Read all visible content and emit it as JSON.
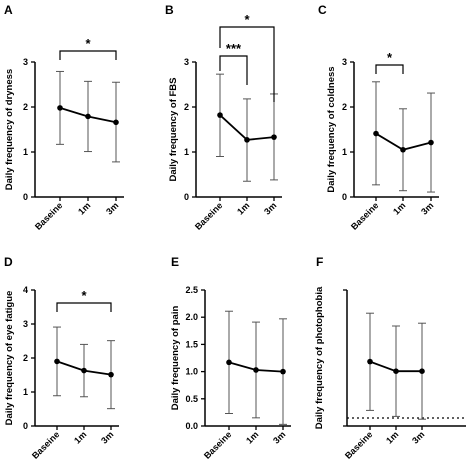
{
  "chart_data": [
    {
      "type": "line",
      "panel": "A",
      "ylabel": "Daily frequency of dryness",
      "categories": [
        "Baseine",
        "1m",
        "3m"
      ],
      "yticks": [
        "0",
        "1",
        "2",
        "3"
      ],
      "ylim": [
        0,
        3
      ],
      "series": [
        {
          "values": [
            1.98,
            1.79,
            1.66
          ],
          "err_low": [
            1.17,
            1.01,
            0.78
          ],
          "err_high": [
            2.79,
            2.57,
            2.55
          ]
        }
      ],
      "significance": [
        {
          "from": 0,
          "to": 2,
          "label": "*"
        }
      ],
      "reference_line": null,
      "grid": false
    },
    {
      "type": "line",
      "panel": "B",
      "ylabel": "Daily frequency of FBS",
      "categories": [
        "Baseine",
        "1m",
        "3m"
      ],
      "yticks": [
        "0",
        "1",
        "2",
        "3"
      ],
      "ylim": [
        0,
        3
      ],
      "series": [
        {
          "values": [
            1.82,
            1.27,
            1.33
          ],
          "err_low": [
            0.9,
            0.35,
            0.38
          ],
          "err_high": [
            2.73,
            2.18,
            2.29
          ]
        }
      ],
      "significance": [
        {
          "from": 0,
          "to": 1,
          "label": "***"
        },
        {
          "from": 0,
          "to": 2,
          "label": "*"
        }
      ],
      "reference_line": null,
      "grid": false
    },
    {
      "type": "line",
      "panel": "C",
      "ylabel": "Daily frequency of coldness",
      "categories": [
        "Baseine",
        "1m",
        "3m"
      ],
      "yticks": [
        "0",
        "1",
        "2",
        "3"
      ],
      "ylim": [
        0,
        3
      ],
      "series": [
        {
          "values": [
            1.41,
            1.05,
            1.21
          ],
          "err_low": [
            0.27,
            0.14,
            0.11
          ],
          "err_high": [
            2.56,
            1.96,
            2.31
          ]
        }
      ],
      "significance": [
        {
          "from": 0,
          "to": 1,
          "label": "*"
        }
      ],
      "reference_line": null,
      "grid": false
    },
    {
      "type": "line",
      "panel": "D",
      "ylabel": "Daily frequency of eye fatigue",
      "categories": [
        "Baseine",
        "1m",
        "3m"
      ],
      "yticks": [
        "0",
        "1",
        "2",
        "3",
        "4"
      ],
      "ylim": [
        0,
        4
      ],
      "series": [
        {
          "values": [
            1.9,
            1.63,
            1.51
          ],
          "err_low": [
            0.89,
            0.86,
            0.51
          ],
          "err_high": [
            2.91,
            2.4,
            2.51
          ]
        }
      ],
      "significance": [
        {
          "from": 0,
          "to": 2,
          "label": "*"
        }
      ],
      "reference_line": null,
      "grid": false
    },
    {
      "type": "line",
      "panel": "E",
      "ylabel": "Daily frequency of pain",
      "categories": [
        "Baseine",
        "1m",
        "3m"
      ],
      "yticks": [
        "0.0",
        "0.5",
        "1.0",
        "1.5",
        "2.0",
        "2.5"
      ],
      "ylim": [
        0,
        2.5
      ],
      "series": [
        {
          "values": [
            1.17,
            1.03,
            1.0
          ],
          "err_low": [
            0.23,
            0.15,
            0.03
          ],
          "err_high": [
            2.11,
            1.91,
            1.97
          ]
        }
      ],
      "significance": [],
      "reference_line": null,
      "grid": false
    },
    {
      "type": "line",
      "panel": "F",
      "ylabel": "Daily frequency of photophobia",
      "categories": [
        "Baseine",
        "1m",
        "3m"
      ],
      "yticks": [],
      "ylim": [
        -0.2,
        3.2
      ],
      "series": [
        {
          "values": [
            1.41,
            1.17,
            1.17
          ],
          "err_low": [
            0.19,
            0.04,
            -0.03
          ],
          "err_high": [
            2.62,
            2.3,
            2.37
          ]
        }
      ],
      "significance": [],
      "reference_line": {
        "y": 0,
        "style": "dotted"
      },
      "grid": false
    }
  ]
}
